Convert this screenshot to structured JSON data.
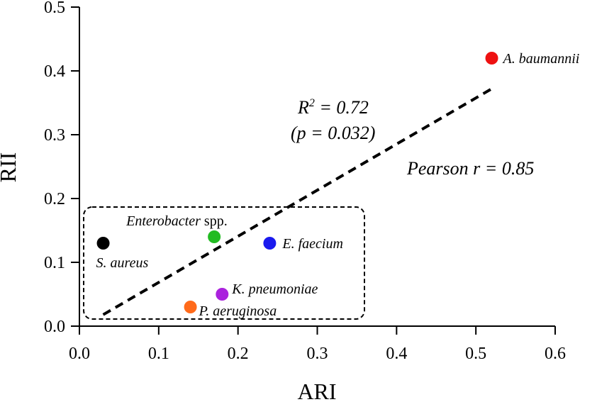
{
  "chart_data": {
    "type": "scatter",
    "xlabel": "ARI",
    "ylabel": "RII",
    "xlim": [
      0,
      0.6
    ],
    "ylim": [
      0,
      0.5
    ],
    "x_ticks": [
      "0.0",
      "0.1",
      "0.2",
      "0.3",
      "0.4",
      "0.5",
      "0.6"
    ],
    "y_ticks": [
      "0.0",
      "0.1",
      "0.2",
      "0.3",
      "0.4",
      "0.5"
    ],
    "grid": false,
    "points": [
      {
        "label": "A. baumannii",
        "x": 0.52,
        "y": 0.42,
        "color": "#ee1111"
      },
      {
        "label": "Enterobacter",
        "label_suffix": " spp.",
        "x": 0.17,
        "y": 0.14,
        "color": "#22bb22"
      },
      {
        "label": "S. aureus",
        "x": 0.03,
        "y": 0.13,
        "color": "#000000"
      },
      {
        "label": "E. faecium",
        "x": 0.24,
        "y": 0.13,
        "color": "#1a1aee"
      },
      {
        "label": "K. pneumoniae",
        "x": 0.18,
        "y": 0.05,
        "color": "#aa22dd"
      },
      {
        "label": "P. aeruginosa",
        "x": 0.14,
        "y": 0.03,
        "color": "#ff6a1a"
      }
    ],
    "trendline": {
      "x": [
        0.03,
        0.52
      ],
      "y": [
        0.018,
        0.372
      ],
      "style": "dashed"
    },
    "annotations": {
      "r_squared_label": "R",
      "r_squared_sup": "2",
      "r_squared_value": " = 0.72",
      "p_value": "(p = 0.032)",
      "pearson": "Pearson r = 0.85"
    }
  }
}
